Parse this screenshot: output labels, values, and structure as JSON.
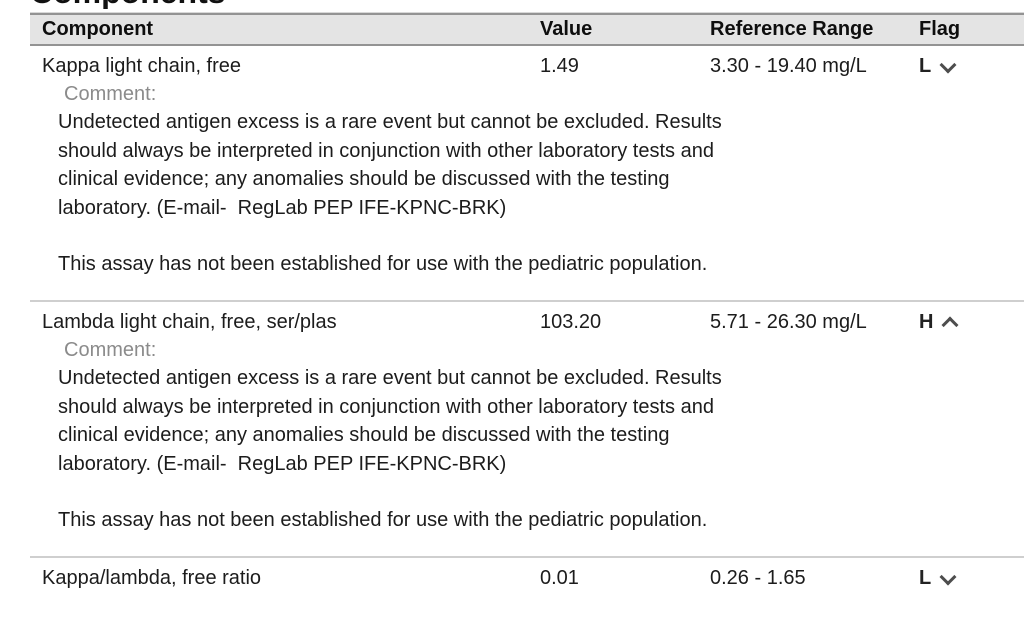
{
  "page_heading": "Components",
  "table": {
    "headers": {
      "component": "Component",
      "value": "Value",
      "range": "Reference Range",
      "flag": "Flag"
    }
  },
  "rows": [
    {
      "name": "Kappa light chain, free",
      "value": "1.49",
      "range": "3.30 - 19.40 mg/L",
      "flag": "L",
      "flag_icon": "chevron-down-icon",
      "comment_label": "Comment:",
      "comment": "Undetected antigen excess is a rare event but cannot be excluded. Results\nshould always be interpreted in conjunction with other laboratory tests and\nclinical evidence; any anomalies should be discussed with the testing\nlaboratory. (E-mail-  RegLab PEP IFE-KPNC-BRK)",
      "note": "This assay has not been established for use with the pediatric population."
    },
    {
      "name": "Lambda light chain, free, ser/plas",
      "value": "103.20",
      "range": "5.71 - 26.30 mg/L",
      "flag": "H",
      "flag_icon": "chevron-up-icon",
      "comment_label": "Comment:",
      "comment": "Undetected antigen excess is a rare event but cannot be excluded. Results\nshould always be interpreted in conjunction with other laboratory tests and\nclinical evidence; any anomalies should be discussed with the testing\nlaboratory. (E-mail-  RegLab PEP IFE-KPNC-BRK)",
      "note": "This assay has not been established for use with the pediatric population."
    },
    {
      "name": "Kappa/lambda, free ratio",
      "value": "0.01",
      "range": "0.26 - 1.65",
      "flag": "L",
      "flag_icon": "chevron-down-icon"
    }
  ],
  "colors": {
    "header_background": "#e4e4e4",
    "header_border": "#939393",
    "section_divider": "#cfcfcf",
    "comment_label_gray": "#8b8b8b",
    "flag_chevron": "#4d4d4d",
    "text": "#1c1c1c"
  }
}
